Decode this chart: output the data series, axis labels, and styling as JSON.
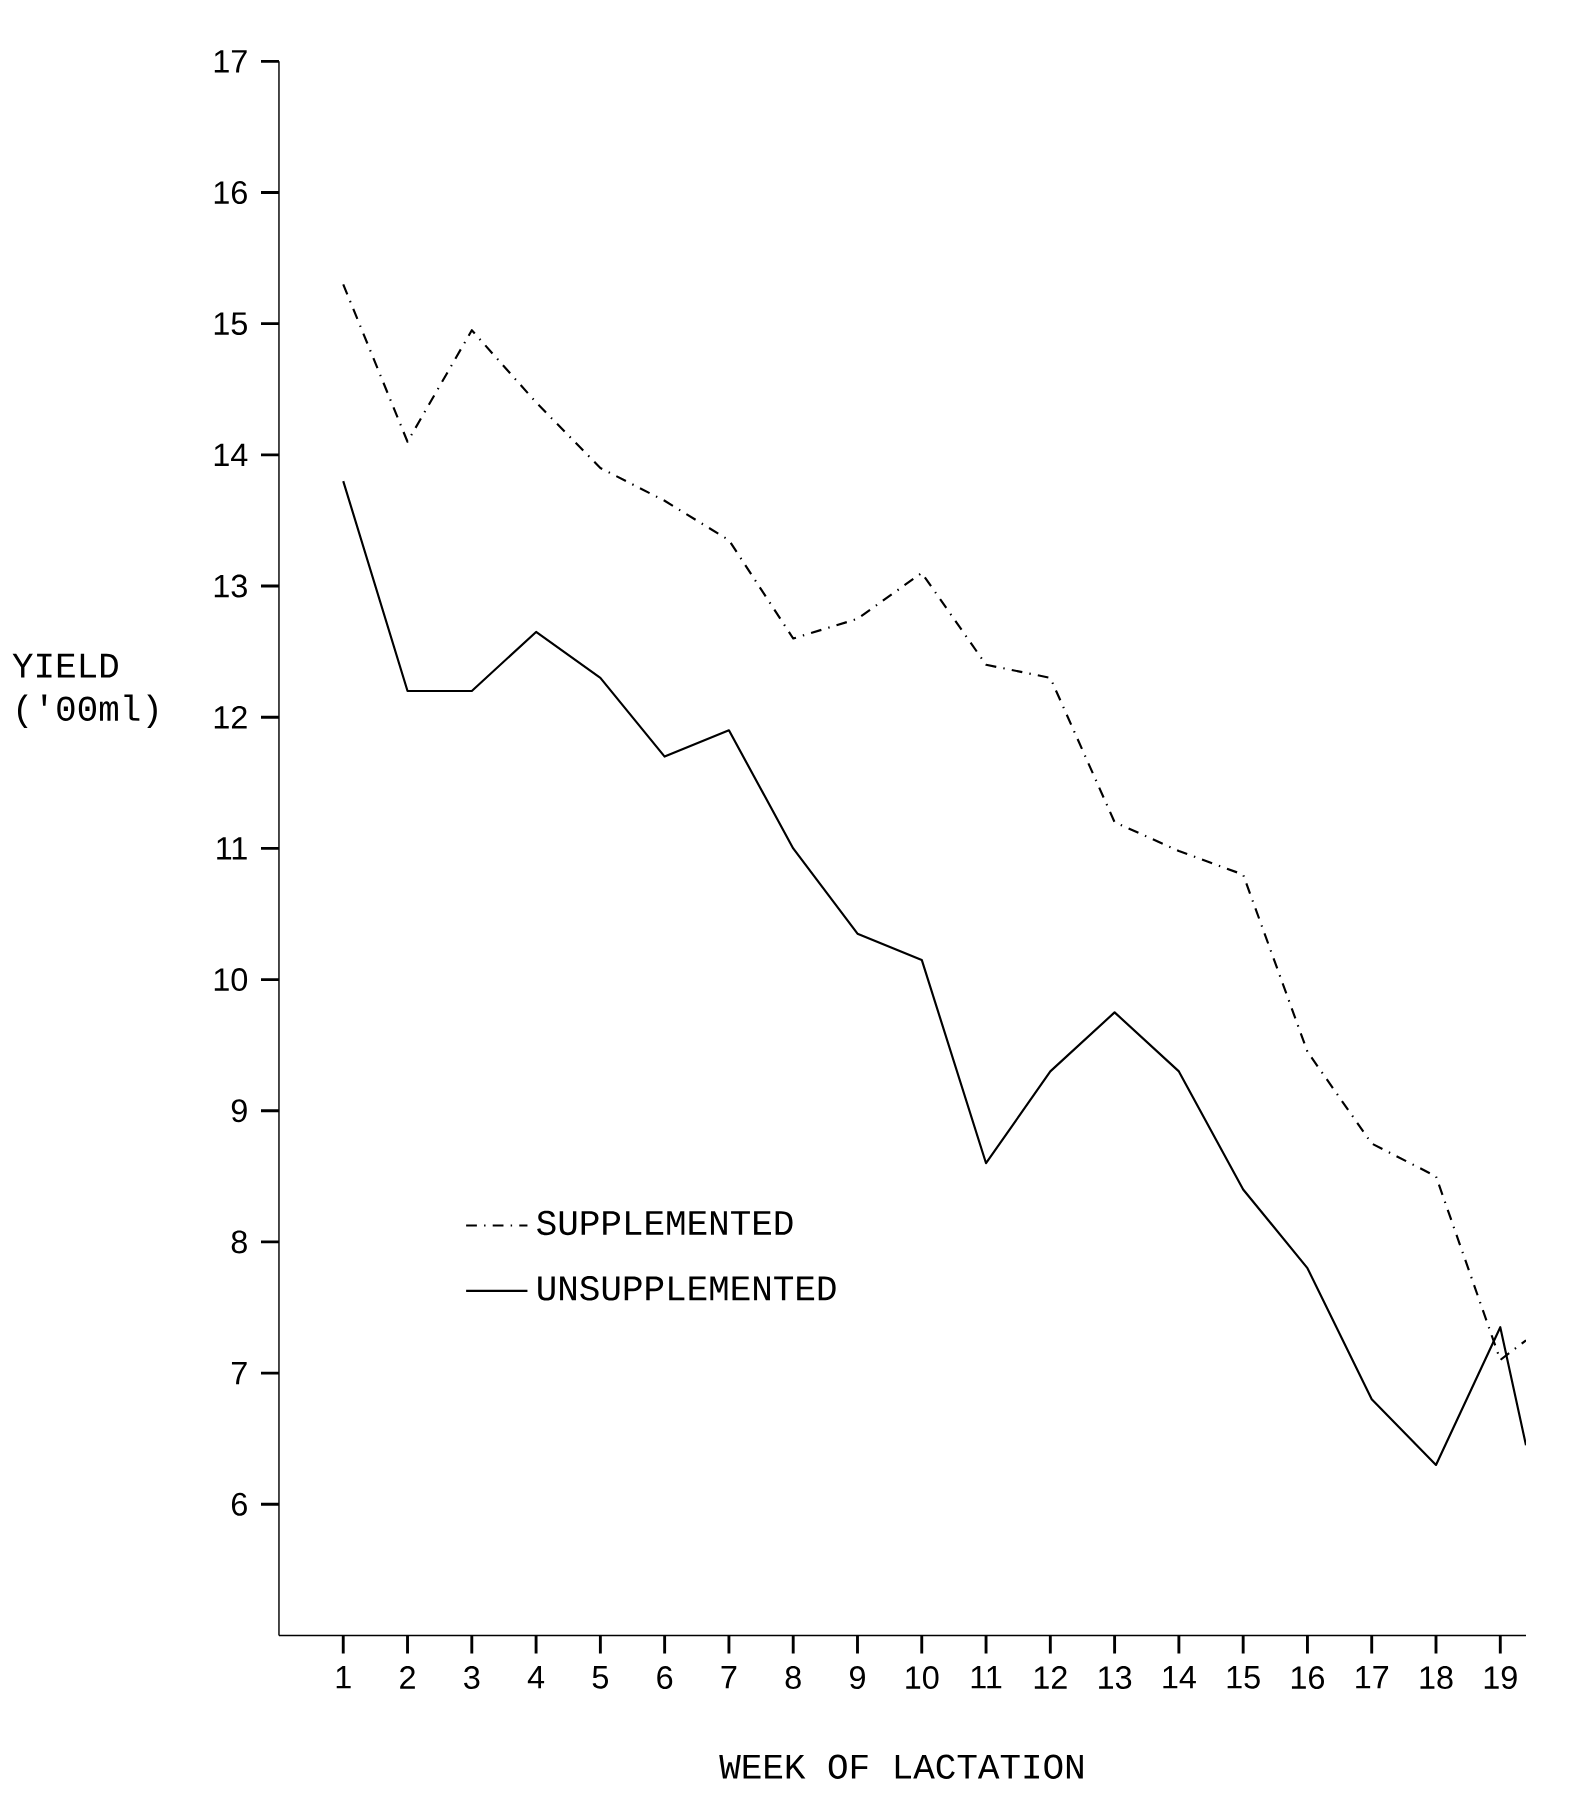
{
  "chart_data": {
    "type": "line",
    "xlabel": "WEEK OF LACTATION",
    "ylabel": "YIELD ('00ml)",
    "xlim": [
      0,
      19.4
    ],
    "ylim": [
      5,
      17
    ],
    "xticks": [
      1,
      2,
      3,
      4,
      5,
      6,
      7,
      8,
      9,
      10,
      11,
      12,
      13,
      14,
      15,
      16,
      17,
      18,
      19
    ],
    "yticks": [
      6,
      7,
      8,
      9,
      10,
      11,
      12,
      13,
      14,
      15,
      16,
      17
    ],
    "legend": "bottom left",
    "grid": false,
    "marker": "none",
    "series": [
      {
        "name": "SUPPLEMENTED",
        "color": "#000000",
        "line_style": "dashed",
        "x": [
          1,
          2,
          3,
          4,
          5,
          6,
          7,
          8,
          9,
          10,
          11,
          12,
          13,
          14,
          15,
          16,
          17,
          18,
          19,
          19.4
        ],
        "values": [
          15.3,
          14.1,
          14.95,
          14.4,
          13.9,
          13.65,
          13.35,
          12.6,
          12.75,
          13.1,
          12.4,
          12.3,
          11.2,
          10.98,
          10.8,
          9.45,
          8.75,
          8.5,
          7.1,
          7.25
        ]
      },
      {
        "name": "UNSUPPLEMENTED",
        "color": "#000000",
        "line_style": "solid",
        "x": [
          1,
          2,
          3,
          4,
          5,
          6,
          7,
          8,
          9,
          10,
          11,
          12,
          13,
          14,
          15,
          16,
          17,
          18,
          19,
          19.4
        ],
        "values": [
          13.8,
          12.2,
          12.2,
          12.65,
          12.3,
          11.7,
          11.9,
          11.0,
          10.35,
          10.15,
          8.6,
          9.3,
          9.75,
          9.3,
          8.4,
          7.8,
          6.8,
          6.3,
          7.35,
          6.45
        ]
      }
    ]
  }
}
